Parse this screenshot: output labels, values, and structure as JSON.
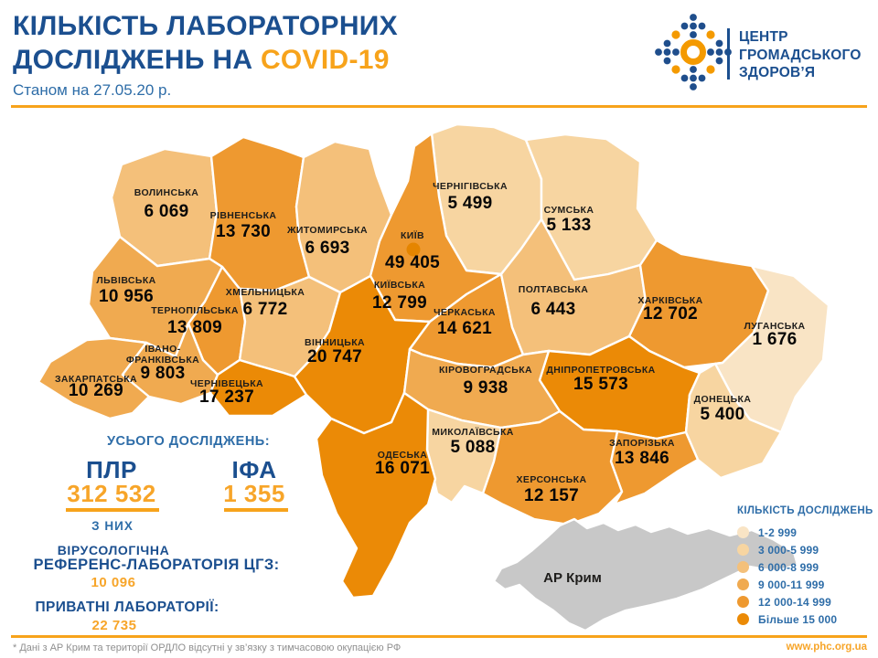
{
  "header": {
    "title_line1": "КІЛЬКІСТЬ ЛАБОРАТОРНИХ",
    "title_line2_prefix": "ДОСЛІДЖЕНЬ НА ",
    "title_line2_highlight": "COVID-19",
    "subtitle": "Станом на 27.05.20 р."
  },
  "logo": {
    "line1": "ЦЕНТР",
    "line2": "ГРОМАДСЬКОГО",
    "line3": "ЗДОРОВ’Я"
  },
  "stats": {
    "total_label": "УСЬОГО ДОСЛІДЖЕНЬ:",
    "pcr_label": "ПЛР",
    "pcr_value": "312 532",
    "elisa_label": "ІФА",
    "elisa_value": "1 355",
    "of_them_label": "З НИХ",
    "reference_lab_line1": "ВІРУСОЛОГІЧНА",
    "reference_lab_line2": "РЕФЕРЕНС-ЛАБОРАТОРІЯ ЦГЗ:",
    "reference_lab_value": "10 096",
    "private_labs_label": "ПРИВАТНІ ЛАБОРАТОРІЇ:",
    "private_labs_value": "22 735"
  },
  "legend": {
    "title": "КІЛЬКІСТЬ ДОСЛІДЖЕНЬ",
    "items": [
      {
        "label": "1-2 999",
        "color": "#F9E4C5"
      },
      {
        "label": "3 000-5 999",
        "color": "#F7D5A1"
      },
      {
        "label": "6 000-8 999",
        "color": "#F4C07A"
      },
      {
        "label": "9 000-11 999",
        "color": "#F0AA50"
      },
      {
        "label": "12 000-14 999",
        "color": "#EE9930"
      },
      {
        "label": "Більше 15 000",
        "color": "#EB8A06"
      }
    ]
  },
  "map": {
    "no_data_color": "#C8C8C8",
    "city_dot_color": "#E58500",
    "regions": [
      {
        "id": "volyn",
        "name": "ВОЛИНСЬКА",
        "value": "6 069",
        "bucket": 3
      },
      {
        "id": "rivne",
        "name": "РІВНЕНСЬКА",
        "value": "13 730",
        "bucket": 5
      },
      {
        "id": "zhytomyr",
        "name": "ЖИТОМИРСЬКА",
        "value": "6 693",
        "bucket": 3
      },
      {
        "id": "chernihiv",
        "name": "ЧЕРНІГІВСЬКА",
        "value": "5 499",
        "bucket": 2
      },
      {
        "id": "sumy",
        "name": "СУМСЬКА",
        "value": "5 133",
        "bucket": 2
      },
      {
        "id": "kyiv-obl",
        "name": "КИЇВСЬКА",
        "value": "12 799",
        "bucket": 5
      },
      {
        "id": "kyiv-city",
        "name": "КИЇВ",
        "value": "49 405",
        "bucket": 6
      },
      {
        "id": "lviv",
        "name": "ЛЬВІВСЬКА",
        "value": "10 956",
        "bucket": 4
      },
      {
        "id": "ternopil",
        "name": "ТЕРНОПІЛЬСЬКА",
        "value": "13 809",
        "bucket": 5
      },
      {
        "id": "khmelnytskyi",
        "name": "ХМЕЛЬНИЦЬКА",
        "value": "6 772",
        "bucket": 3
      },
      {
        "id": "zakarpattia",
        "name": "ЗАКАРПАТСЬКА",
        "value": "10 269",
        "bucket": 4
      },
      {
        "id": "ivano-frankivsk",
        "name": "ІВАНО-",
        "name2": "ФРАНКІВСЬКА",
        "value": "9 803",
        "bucket": 4
      },
      {
        "id": "chernivtsi",
        "name": "ЧЕРНІВЕЦЬКА",
        "value": "17 237",
        "bucket": 6
      },
      {
        "id": "vinnytsia",
        "name": "ВІННИЦЬКА",
        "value": "20 747",
        "bucket": 6
      },
      {
        "id": "cherkasy",
        "name": "ЧЕРКАСЬКА",
        "value": "14 621",
        "bucket": 5
      },
      {
        "id": "poltava",
        "name": "ПОЛТАВСЬКА",
        "value": "6 443",
        "bucket": 3
      },
      {
        "id": "kharkiv",
        "name": "ХАРКІВСЬКА",
        "value": "12 702",
        "bucket": 5
      },
      {
        "id": "luhansk",
        "name": "ЛУГАНСЬКА",
        "value": "1 676",
        "bucket": 1
      },
      {
        "id": "dnipro",
        "name": "ДНІПРОПЕТРОВСЬКА",
        "value": "15 573",
        "bucket": 6
      },
      {
        "id": "donetsk",
        "name": "ДОНЕЦЬКА",
        "value": "5 400",
        "bucket": 2
      },
      {
        "id": "kirovohrad",
        "name": "КІРОВОГРАДСЬКА",
        "value": "9 938",
        "bucket": 4
      },
      {
        "id": "mykolaiv",
        "name": "МИКОЛАЇВСЬКА",
        "value": "5 088",
        "bucket": 2
      },
      {
        "id": "odesa",
        "name": "ОДЕСЬКА",
        "value": "16 071",
        "bucket": 6
      },
      {
        "id": "zaporizhzhia",
        "name": "ЗАПОРІЗЬКА",
        "value": "13 846",
        "bucket": 5
      },
      {
        "id": "kherson",
        "name": "ХЕРСОНСЬКА",
        "value": "12 157",
        "bucket": 5
      },
      {
        "id": "crimea",
        "name": "АР Крим",
        "value": "",
        "bucket": null
      }
    ]
  },
  "footer": {
    "note": "* Дані з АР Крим та території ОРДЛО відсутні у зв’язку з тимчасовою окупацією РФ",
    "website": "www.phc.org.ua"
  }
}
